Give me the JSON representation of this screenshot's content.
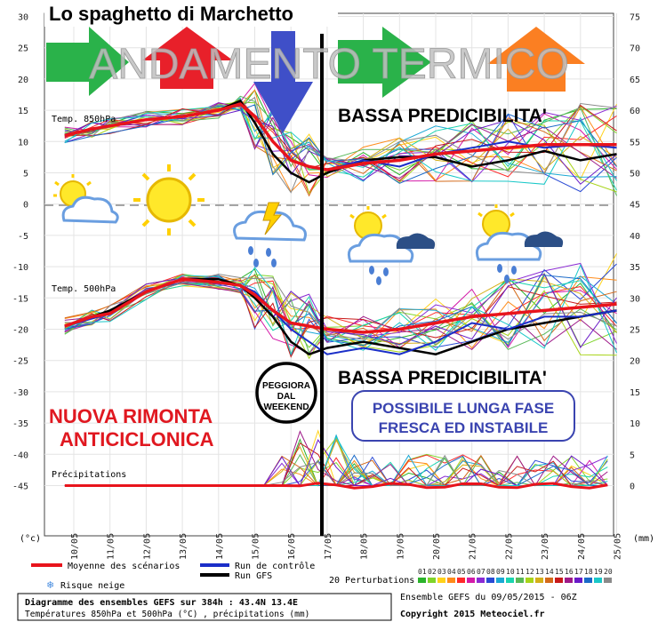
{
  "page_title": "Lo spaghetto di Marchetto",
  "banner": "ANDAMENTO TERMICO",
  "low_pred_1": "BASSA PREDICIBILITA'",
  "low_pred_2": "BASSA PREDICIBILITA'",
  "rimonta": [
    "NUOVA RIMONTA",
    "ANTICICLONICA"
  ],
  "peggiora": [
    "PEGGIORA",
    "DAL",
    "WEEKEND"
  ],
  "possibile": [
    "POSSIBILE LUNGA FASE",
    "FRESCA ED INSTABILE"
  ],
  "colors": {
    "arrow_green": "#2ab24a",
    "arrow_red": "#e8202a",
    "arrow_blue": "#3f4fc8",
    "arrow_orange": "#fb7f22",
    "mean": "#e8141c",
    "control": "#1a2ec8",
    "gfs": "#000000",
    "rimonta_text": "#e01820",
    "possibile_text": "#3a44b0"
  },
  "icons": [
    "sun-cloud-icon",
    "sun-icon",
    "storm-icon",
    "sun-rain-icon",
    "sun-rain-icon"
  ],
  "chart_data": {
    "type": "line",
    "left_axis_ticks": [
      30,
      25,
      20,
      15,
      10,
      5,
      0,
      -5,
      -10,
      -15,
      -20,
      -25,
      -30,
      -35,
      -40,
      -45
    ],
    "right_axis_ticks": [
      75,
      70,
      65,
      60,
      55,
      50,
      45,
      40,
      35,
      30,
      25,
      20,
      15,
      10,
      5,
      0
    ],
    "left_unit": "(°c)",
    "right_unit": "(mm)",
    "x_labels": [
      "10/05",
      "11/05",
      "12/05",
      "13/05",
      "14/05",
      "15/05",
      "16/05",
      "17/05",
      "18/05",
      "19/05",
      "20/05",
      "21/05",
      "22/05",
      "23/05",
      "24/05",
      "25/05"
    ],
    "panel_labels": [
      "Temp. 850hPa",
      "Temp. 500hPa",
      "Précipitations"
    ],
    "t850_mean": [
      [
        -0.25,
        11
      ],
      [
        0.5,
        12
      ],
      [
        1,
        12.5
      ],
      [
        2,
        13.5
      ],
      [
        3,
        14
      ],
      [
        4,
        15
      ],
      [
        4.6,
        16
      ],
      [
        5,
        14
      ],
      [
        5.5,
        10
      ],
      [
        6,
        7
      ],
      [
        6.5,
        6
      ],
      [
        7,
        5.5
      ],
      [
        8,
        6.5
      ],
      [
        9,
        7
      ],
      [
        10,
        8
      ],
      [
        11,
        8.5
      ],
      [
        12,
        9
      ],
      [
        13,
        9.5
      ],
      [
        14,
        9.5
      ],
      [
        15,
        9.5
      ]
    ],
    "t500_mean": [
      [
        -0.25,
        -19.5
      ],
      [
        0.5,
        -18
      ],
      [
        1,
        -17.5
      ],
      [
        2,
        -14
      ],
      [
        3,
        -12
      ],
      [
        4,
        -12.5
      ],
      [
        4.6,
        -13
      ],
      [
        5,
        -14.5
      ],
      [
        5.5,
        -17
      ],
      [
        6,
        -19
      ],
      [
        6.5,
        -19.5
      ],
      [
        7,
        -20
      ],
      [
        8,
        -20.5
      ],
      [
        9,
        -20
      ],
      [
        10,
        -19
      ],
      [
        11,
        -18
      ],
      [
        12,
        -17.5
      ],
      [
        13,
        -17
      ],
      [
        14,
        -16.5
      ],
      [
        15,
        -16
      ]
    ],
    "t850_gfs": [
      [
        -0.25,
        11
      ],
      [
        1,
        12.5
      ],
      [
        2,
        13.5
      ],
      [
        3,
        14
      ],
      [
        4,
        15
      ],
      [
        4.6,
        16.5
      ],
      [
        5,
        13
      ],
      [
        5.5,
        8
      ],
      [
        6,
        5
      ],
      [
        6.5,
        3.5
      ],
      [
        7,
        5
      ],
      [
        8,
        7
      ],
      [
        9,
        7.5
      ],
      [
        10,
        7.5
      ],
      [
        11,
        6
      ],
      [
        12,
        7
      ],
      [
        13,
        8.5
      ],
      [
        14,
        7
      ],
      [
        15,
        8
      ]
    ],
    "t500_gfs": [
      [
        -0.25,
        -19.5
      ],
      [
        1,
        -17
      ],
      [
        2,
        -14
      ],
      [
        3,
        -12
      ],
      [
        4,
        -12
      ],
      [
        4.6,
        -13
      ],
      [
        5,
        -15
      ],
      [
        5.5,
        -18
      ],
      [
        6,
        -22
      ],
      [
        6.5,
        -24
      ],
      [
        7,
        -23
      ],
      [
        8,
        -22
      ],
      [
        9,
        -23
      ],
      [
        10,
        -24
      ],
      [
        11,
        -22
      ],
      [
        12,
        -20
      ],
      [
        13,
        -19
      ],
      [
        14,
        -18
      ],
      [
        15,
        -17
      ]
    ],
    "t850_control": [
      [
        -0.25,
        11
      ],
      [
        1,
        12.5
      ],
      [
        2,
        13.5
      ],
      [
        3,
        14
      ],
      [
        4,
        15
      ],
      [
        4.6,
        16
      ],
      [
        5,
        14
      ],
      [
        5.5,
        10
      ],
      [
        6,
        7
      ],
      [
        6.5,
        6
      ],
      [
        7,
        5.5
      ],
      [
        8,
        7
      ],
      [
        9,
        6
      ],
      [
        10,
        8
      ],
      [
        11,
        9
      ],
      [
        12,
        10
      ],
      [
        13,
        9
      ],
      [
        14,
        9.5
      ],
      [
        15,
        9
      ]
    ],
    "t500_control": [
      [
        -0.25,
        -19.5
      ],
      [
        1,
        -17.5
      ],
      [
        2,
        -14
      ],
      [
        3,
        -12
      ],
      [
        4,
        -12.5
      ],
      [
        4.6,
        -13
      ],
      [
        5,
        -14
      ],
      [
        5.5,
        -17
      ],
      [
        6,
        -20
      ],
      [
        6.5,
        -22
      ],
      [
        7,
        -24
      ],
      [
        8,
        -23
      ],
      [
        9,
        -24
      ],
      [
        10,
        -22
      ],
      [
        11,
        -19
      ],
      [
        12,
        -20
      ],
      [
        13,
        -18
      ],
      [
        14,
        -18
      ],
      [
        15,
        -17
      ]
    ],
    "legend": {
      "mean": "Moyenne des scénarios",
      "control": "Run de contrôle",
      "gfs": "Run GFS",
      "snow": "Risque neige",
      "perturbations": "20 Perturbations",
      "pert_numbers": [
        "01",
        "02",
        "03",
        "04",
        "05",
        "06",
        "07",
        "08",
        "09",
        "10",
        "11",
        "12",
        "13",
        "14",
        "15",
        "16",
        "17",
        "18",
        "19",
        "20"
      ],
      "pert_colors": [
        "#2bb32b",
        "#7fd42a",
        "#ffd21a",
        "#ff8b1a",
        "#ff2a2a",
        "#d41aa8",
        "#8b2ad4",
        "#2a4ad4",
        "#1aa8d4",
        "#1ad4b0",
        "#58b858",
        "#a8d41a",
        "#d4b01a",
        "#d46a1a",
        "#c81a1a",
        "#9e1a88",
        "#6a1ac8",
        "#1a6ac8",
        "#1ac8c8",
        "#8a8a8a"
      ]
    },
    "info": {
      "line1": "Diagramme des ensembles GEFS sur 384h : 43.4N 13.4E",
      "line2": "Températures 850hPa et 500hPa (°C) , précipitations (mm)",
      "run": "Ensemble GEFS du 09/05/2015 - 06Z",
      "copyright": "Copyright 2015 Meteociel.fr"
    }
  }
}
